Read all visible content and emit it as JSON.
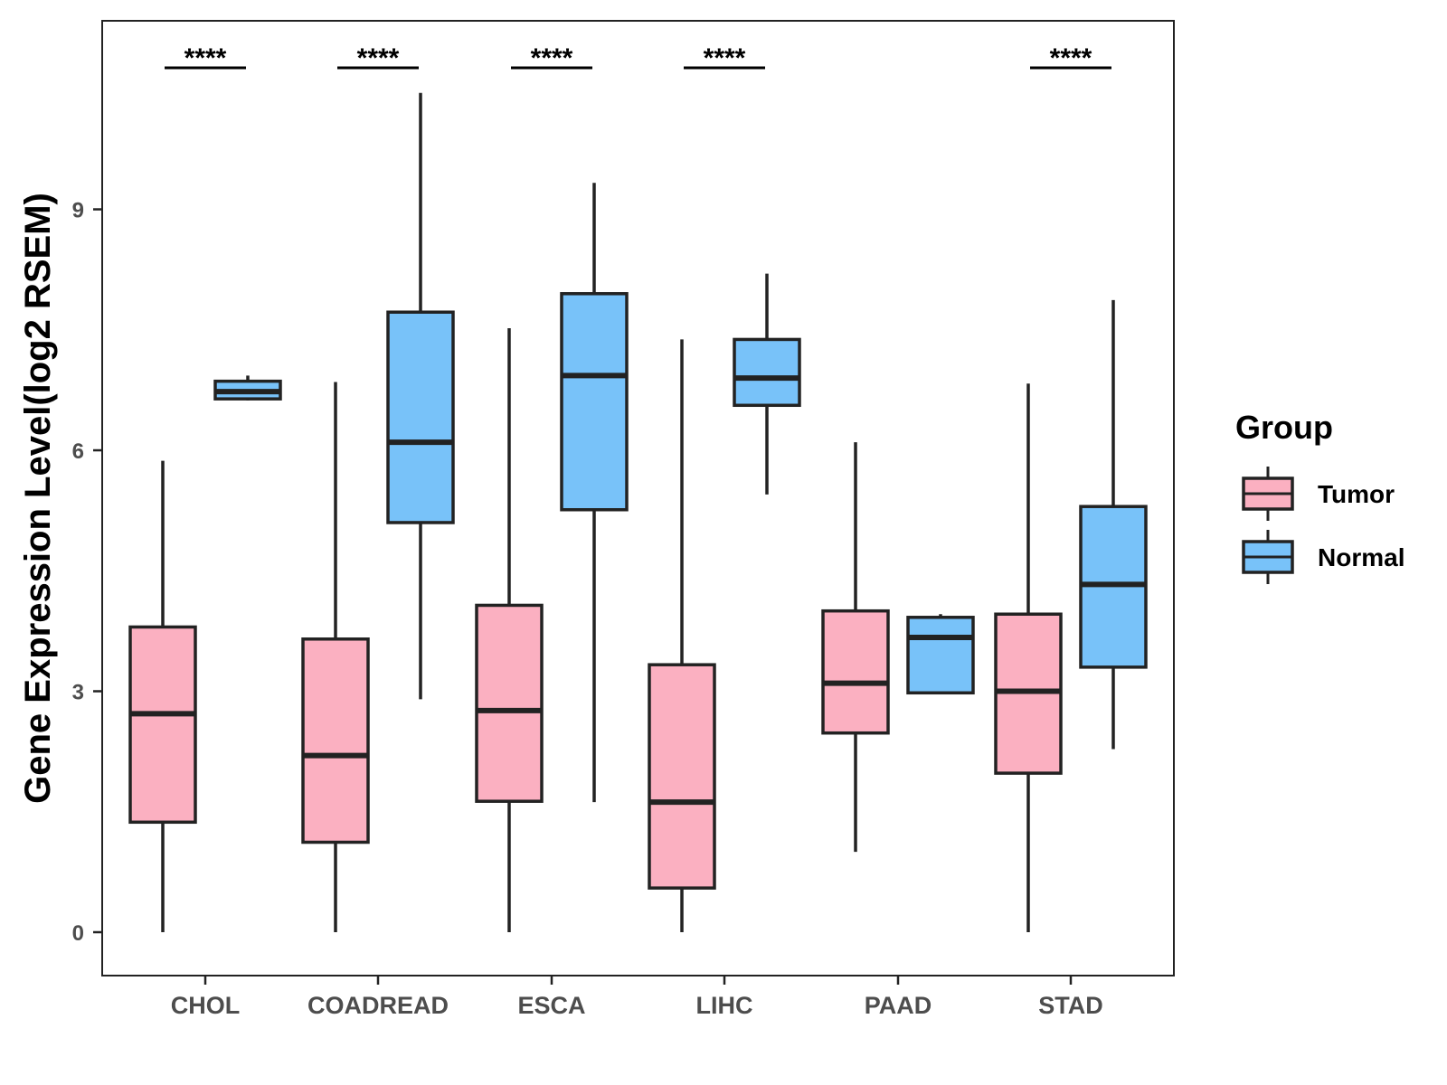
{
  "chart_data": {
    "type": "boxplot",
    "title": "",
    "xlabel": "",
    "ylabel": "Gene Expression Level(log2 RSEM)",
    "ylim": [
      -0.5,
      11.4
    ],
    "yticks": [
      0,
      3,
      6,
      9
    ],
    "grid": false,
    "legend": {
      "title": "Group",
      "position": "right",
      "entries": [
        {
          "name": "Tumor",
          "color": "#FBB0C1"
        },
        {
          "name": "Normal",
          "color": "#78C2F9"
        }
      ]
    },
    "categories": [
      "CHOL",
      "COADREAD",
      "ESCA",
      "LIHC",
      "PAAD",
      "STAD"
    ],
    "series": [
      {
        "name": "Tumor",
        "color": "#FBB0C1",
        "boxes": [
          {
            "min": 0.0,
            "q1": 1.37,
            "median": 2.72,
            "q3": 3.8,
            "max": 5.87
          },
          {
            "min": 0.0,
            "q1": 1.12,
            "median": 2.2,
            "q3": 3.65,
            "max": 6.85
          },
          {
            "min": 0.0,
            "q1": 1.63,
            "median": 2.76,
            "q3": 4.07,
            "max": 7.52
          },
          {
            "min": 0.0,
            "q1": 0.55,
            "median": 1.62,
            "q3": 3.33,
            "max": 7.38
          },
          {
            "min": 1.0,
            "q1": 2.48,
            "median": 3.1,
            "q3": 4.0,
            "max": 6.1
          },
          {
            "min": 0.0,
            "q1": 1.98,
            "median": 3.0,
            "q3": 3.96,
            "max": 6.83
          }
        ]
      },
      {
        "name": "Normal",
        "color": "#78C2F9",
        "boxes": [
          {
            "min": 6.62,
            "q1": 6.64,
            "median": 6.73,
            "q3": 6.86,
            "max": 6.93
          },
          {
            "min": 2.9,
            "q1": 5.1,
            "median": 6.1,
            "q3": 7.72,
            "max": 10.45
          },
          {
            "min": 1.62,
            "q1": 5.26,
            "median": 6.93,
            "q3": 7.95,
            "max": 9.33
          },
          {
            "min": 5.45,
            "q1": 6.56,
            "median": 6.9,
            "q3": 7.38,
            "max": 8.2
          },
          {
            "min": 2.98,
            "q1": 2.98,
            "median": 3.67,
            "q3": 3.92,
            "max": 3.96
          },
          {
            "min": 2.28,
            "q1": 3.3,
            "median": 4.33,
            "q3": 5.3,
            "max": 7.87
          }
        ]
      }
    ],
    "significance": [
      "****",
      "****",
      "****",
      "****",
      "",
      "****"
    ]
  }
}
